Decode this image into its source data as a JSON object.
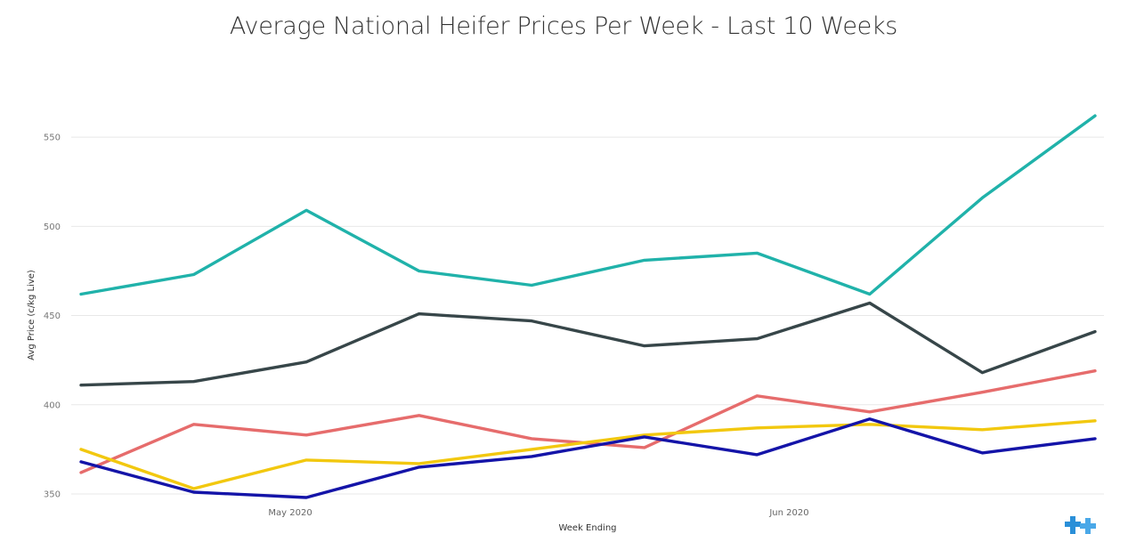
{
  "chart_data": {
    "type": "line",
    "title": "Average National Heifer Prices Per Week - Last 10 Weeks",
    "xlabel": "Week Ending",
    "ylabel": "Avg Price (c/kg Live)",
    "x": [
      "2020-04-18",
      "2020-04-25",
      "2020-05-02",
      "2020-05-09",
      "2020-05-16",
      "2020-05-23",
      "2020-05-30",
      "2020-06-06",
      "2020-06-13",
      "2020-06-20"
    ],
    "x_ticks": [
      {
        "label": "May 2020",
        "date": "2020-05-01"
      },
      {
        "label": "Jun 2020",
        "date": "2020-06-01"
      }
    ],
    "yticks": [
      350,
      400,
      450,
      500,
      550
    ],
    "ylim": [
      347,
      582
    ],
    "grid": true,
    "series": [
      {
        "color": "#20b2aa",
        "values": [
          462,
          473,
          509,
          475,
          467,
          481,
          485,
          462,
          516,
          562
        ]
      },
      {
        "color": "#374649",
        "values": [
          411,
          413,
          424,
          451,
          447,
          433,
          437,
          457,
          418,
          441
        ]
      },
      {
        "color": "#e66c6c",
        "values": [
          362,
          389,
          383,
          394,
          381,
          376,
          405,
          396,
          407,
          419
        ]
      },
      {
        "color": "#f2c80f",
        "values": [
          375,
          353,
          369,
          367,
          375,
          383,
          387,
          389,
          386,
          391
        ]
      },
      {
        "color": "#1414a8",
        "values": [
          368,
          351,
          348,
          365,
          371,
          382,
          372,
          392,
          373,
          381
        ]
      }
    ]
  },
  "brand": {
    "icon": "plus-logo-icon",
    "color": "#2a8fd8"
  }
}
